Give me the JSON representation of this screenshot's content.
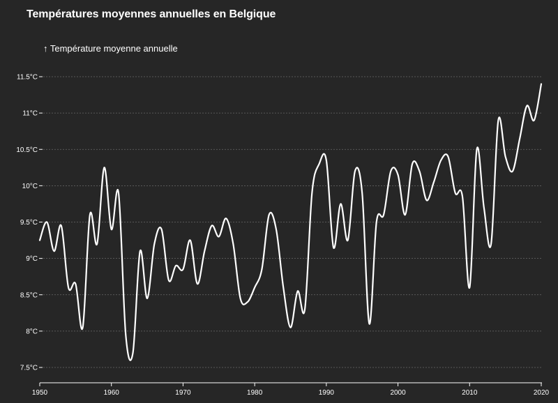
{
  "chart_data": {
    "type": "line",
    "title": "Températures moyennes annuelles en Belgique",
    "ylabel": "↑ Température moyenne annuelle",
    "xlabel": "",
    "unit": "°C",
    "xlim": [
      1950,
      2020
    ],
    "ylim": [
      7.4,
      11.6
    ],
    "grid": {
      "horizontal": true,
      "vertical": false
    },
    "line_color": "#ffffff",
    "x_ticks": [
      1950,
      1960,
      1970,
      1980,
      1990,
      2000,
      2010,
      2020
    ],
    "y_ticks": [
      {
        "value": 7.5,
        "label": "7.5°C"
      },
      {
        "value": 8,
        "label": "8°C"
      },
      {
        "value": 8.5,
        "label": "8.5°C"
      },
      {
        "value": 9,
        "label": "9°C"
      },
      {
        "value": 9.5,
        "label": "9.5°C"
      },
      {
        "value": 10,
        "label": "10°C"
      },
      {
        "value": 10.5,
        "label": "10.5°C"
      },
      {
        "value": 11,
        "label": "11°C"
      },
      {
        "value": 11.5,
        "label": "11.5°C"
      }
    ],
    "x": [
      1950,
      1951,
      1952,
      1953,
      1954,
      1955,
      1956,
      1957,
      1958,
      1959,
      1960,
      1961,
      1962,
      1963,
      1964,
      1965,
      1966,
      1967,
      1968,
      1969,
      1970,
      1971,
      1972,
      1973,
      1974,
      1975,
      1976,
      1977,
      1978,
      1979,
      1980,
      1981,
      1982,
      1983,
      1984,
      1985,
      1986,
      1987,
      1988,
      1989,
      1990,
      1991,
      1992,
      1993,
      1994,
      1995,
      1996,
      1997,
      1998,
      1999,
      2000,
      2001,
      2002,
      2003,
      2004,
      2005,
      2006,
      2007,
      2008,
      2009,
      2010,
      2011,
      2012,
      2013,
      2014,
      2015,
      2016,
      2017,
      2018,
      2019,
      2020
    ],
    "y": [
      9.25,
      9.5,
      9.1,
      9.45,
      8.6,
      8.65,
      8.05,
      9.6,
      9.2,
      10.25,
      9.4,
      9.9,
      7.95,
      7.7,
      9.1,
      8.45,
      9.2,
      9.4,
      8.7,
      8.9,
      8.85,
      9.25,
      8.65,
      9.1,
      9.45,
      9.3,
      9.55,
      9.2,
      8.45,
      8.4,
      8.6,
      8.85,
      9.6,
      9.4,
      8.6,
      8.05,
      8.55,
      8.3,
      9.9,
      10.3,
      10.35,
      9.15,
      9.75,
      9.25,
      10.2,
      9.9,
      8.1,
      9.5,
      9.6,
      10.2,
      10.15,
      9.6,
      10.3,
      10.2,
      9.8,
      10.05,
      10.35,
      10.4,
      9.9,
      9.85,
      8.6,
      10.5,
      9.7,
      9.2,
      10.9,
      10.4,
      10.2,
      10.65,
      11.1,
      10.9,
      11.4
    ]
  }
}
